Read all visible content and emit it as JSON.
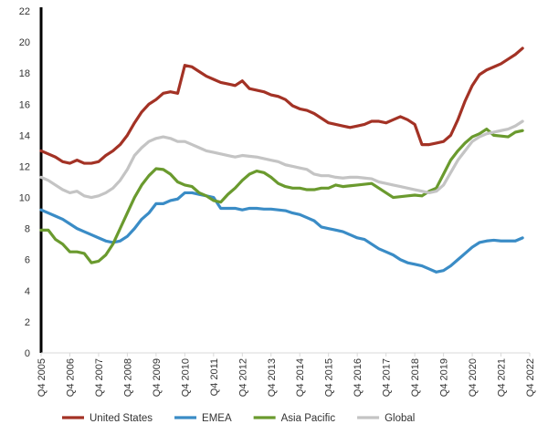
{
  "chart_data": {
    "type": "line",
    "x": [
      "Q4 2005",
      "Q4 2006",
      "Q4 2007",
      "Q4 2008",
      "Q4 2009",
      "Q4 2010",
      "Q4 2011",
      "Q4 2012",
      "Q4 2013",
      "Q4 2014",
      "Q4 2015",
      "Q4 2016",
      "Q4 2017",
      "Q4 2018",
      "Q4 2019",
      "Q4 2020",
      "Q4 2021",
      "Q4 2022"
    ],
    "ylim": [
      0,
      22
    ],
    "y_ticks": [
      0,
      2,
      4,
      6,
      8,
      10,
      12,
      14,
      16,
      18,
      20,
      22
    ],
    "grid": false,
    "legend_position": "bottom",
    "series": [
      {
        "name": "United States",
        "color": "#a33225",
        "points": [
          [
            "Q4 2005",
            13.0
          ],
          [
            "Q1 2006",
            12.8
          ],
          [
            "Q2 2006",
            12.6
          ],
          [
            "Q3 2006",
            12.3
          ],
          [
            "Q4 2006",
            12.2
          ],
          [
            "Q1 2007",
            12.4
          ],
          [
            "Q2 2007",
            12.2
          ],
          [
            "Q3 2007",
            12.2
          ],
          [
            "Q4 2007",
            12.3
          ],
          [
            "Q1 2008",
            12.7
          ],
          [
            "Q2 2008",
            13.0
          ],
          [
            "Q3 2008",
            13.4
          ],
          [
            "Q4 2008",
            14.0
          ],
          [
            "Q1 2009",
            14.8
          ],
          [
            "Q2 2009",
            15.5
          ],
          [
            "Q3 2009",
            16.0
          ],
          [
            "Q4 2009",
            16.3
          ],
          [
            "Q1 2010",
            16.7
          ],
          [
            "Q2 2010",
            16.8
          ],
          [
            "Q3 2010",
            16.7
          ],
          [
            "Q4 2010",
            18.5
          ],
          [
            "Q1 2011",
            18.4
          ],
          [
            "Q2 2011",
            18.1
          ],
          [
            "Q3 2011",
            17.8
          ],
          [
            "Q4 2011",
            17.6
          ],
          [
            "Q1 2012",
            17.4
          ],
          [
            "Q2 2012",
            17.3
          ],
          [
            "Q3 2012",
            17.2
          ],
          [
            "Q4 2012",
            17.5
          ],
          [
            "Q1 2013",
            17.0
          ],
          [
            "Q2 2013",
            16.9
          ],
          [
            "Q3 2013",
            16.8
          ],
          [
            "Q4 2013",
            16.6
          ],
          [
            "Q1 2014",
            16.5
          ],
          [
            "Q2 2014",
            16.3
          ],
          [
            "Q3 2014",
            15.9
          ],
          [
            "Q4 2014",
            15.7
          ],
          [
            "Q1 2015",
            15.6
          ],
          [
            "Q2 2015",
            15.4
          ],
          [
            "Q3 2015",
            15.1
          ],
          [
            "Q4 2015",
            14.8
          ],
          [
            "Q1 2016",
            14.7
          ],
          [
            "Q2 2016",
            14.6
          ],
          [
            "Q3 2016",
            14.5
          ],
          [
            "Q4 2016",
            14.6
          ],
          [
            "Q1 2017",
            14.7
          ],
          [
            "Q2 2017",
            14.9
          ],
          [
            "Q3 2017",
            14.9
          ],
          [
            "Q4 2017",
            14.8
          ],
          [
            "Q1 2018",
            15.0
          ],
          [
            "Q2 2018",
            15.2
          ],
          [
            "Q3 2018",
            15.0
          ],
          [
            "Q4 2018",
            14.7
          ],
          [
            "Q1 2019",
            13.4
          ],
          [
            "Q2 2019",
            13.4
          ],
          [
            "Q3 2019",
            13.5
          ],
          [
            "Q4 2019",
            13.6
          ],
          [
            "Q1 2020",
            14.0
          ],
          [
            "Q2 2020",
            15.0
          ],
          [
            "Q3 2020",
            16.2
          ],
          [
            "Q4 2020",
            17.2
          ],
          [
            "Q1 2021",
            17.9
          ],
          [
            "Q2 2021",
            18.2
          ],
          [
            "Q3 2021",
            18.4
          ],
          [
            "Q4 2021",
            18.6
          ],
          [
            "Q1 2022",
            18.9
          ],
          [
            "Q2 2022",
            19.2
          ],
          [
            "Q3 2022",
            19.6
          ]
        ]
      },
      {
        "name": "EMEA",
        "color": "#3a8cc6",
        "points": [
          [
            "Q4 2005",
            9.2
          ],
          [
            "Q1 2006",
            9.0
          ],
          [
            "Q2 2006",
            8.8
          ],
          [
            "Q3 2006",
            8.6
          ],
          [
            "Q4 2006",
            8.3
          ],
          [
            "Q1 2007",
            8.0
          ],
          [
            "Q2 2007",
            7.8
          ],
          [
            "Q3 2007",
            7.6
          ],
          [
            "Q4 2007",
            7.4
          ],
          [
            "Q1 2008",
            7.2
          ],
          [
            "Q2 2008",
            7.1
          ],
          [
            "Q3 2008",
            7.2
          ],
          [
            "Q4 2008",
            7.5
          ],
          [
            "Q1 2009",
            8.0
          ],
          [
            "Q2 2009",
            8.6
          ],
          [
            "Q3 2009",
            9.0
          ],
          [
            "Q4 2009",
            9.6
          ],
          [
            "Q1 2010",
            9.6
          ],
          [
            "Q2 2010",
            9.8
          ],
          [
            "Q3 2010",
            9.9
          ],
          [
            "Q4 2010",
            10.3
          ],
          [
            "Q1 2011",
            10.3
          ],
          [
            "Q2 2011",
            10.2
          ],
          [
            "Q3 2011",
            10.1
          ],
          [
            "Q4 2011",
            10.0
          ],
          [
            "Q1 2012",
            9.3
          ],
          [
            "Q2 2012",
            9.3
          ],
          [
            "Q3 2012",
            9.3
          ],
          [
            "Q4 2012",
            9.2
          ],
          [
            "Q1 2013",
            9.3
          ],
          [
            "Q2 2013",
            9.3
          ],
          [
            "Q3 2013",
            9.25
          ],
          [
            "Q4 2013",
            9.25
          ],
          [
            "Q1 2014",
            9.2
          ],
          [
            "Q2 2014",
            9.15
          ],
          [
            "Q3 2014",
            9.0
          ],
          [
            "Q4 2014",
            8.9
          ],
          [
            "Q1 2015",
            8.7
          ],
          [
            "Q2 2015",
            8.5
          ],
          [
            "Q3 2015",
            8.1
          ],
          [
            "Q4 2015",
            8.0
          ],
          [
            "Q1 2016",
            7.9
          ],
          [
            "Q2 2016",
            7.8
          ],
          [
            "Q3 2016",
            7.6
          ],
          [
            "Q4 2016",
            7.4
          ],
          [
            "Q1 2017",
            7.3
          ],
          [
            "Q2 2017",
            7.0
          ],
          [
            "Q3 2017",
            6.7
          ],
          [
            "Q4 2017",
            6.5
          ],
          [
            "Q1 2018",
            6.3
          ],
          [
            "Q2 2018",
            6.0
          ],
          [
            "Q3 2018",
            5.8
          ],
          [
            "Q4 2018",
            5.7
          ],
          [
            "Q1 2019",
            5.6
          ],
          [
            "Q2 2019",
            5.4
          ],
          [
            "Q3 2019",
            5.2
          ],
          [
            "Q4 2019",
            5.3
          ],
          [
            "Q1 2020",
            5.6
          ],
          [
            "Q2 2020",
            6.0
          ],
          [
            "Q3 2020",
            6.4
          ],
          [
            "Q4 2020",
            6.8
          ],
          [
            "Q1 2021",
            7.1
          ],
          [
            "Q2 2021",
            7.2
          ],
          [
            "Q3 2021",
            7.25
          ],
          [
            "Q4 2021",
            7.2
          ],
          [
            "Q1 2022",
            7.2
          ],
          [
            "Q2 2022",
            7.2
          ],
          [
            "Q3 2022",
            7.4
          ]
        ]
      },
      {
        "name": "Asia Pacific",
        "color": "#6a9a2e",
        "points": [
          [
            "Q4 2005",
            7.9
          ],
          [
            "Q1 2006",
            7.9
          ],
          [
            "Q2 2006",
            7.3
          ],
          [
            "Q3 2006",
            7.0
          ],
          [
            "Q4 2006",
            6.5
          ],
          [
            "Q1 2007",
            6.5
          ],
          [
            "Q2 2007",
            6.4
          ],
          [
            "Q3 2007",
            5.8
          ],
          [
            "Q4 2007",
            5.9
          ],
          [
            "Q1 2008",
            6.3
          ],
          [
            "Q2 2008",
            7.0
          ],
          [
            "Q3 2008",
            8.0
          ],
          [
            "Q4 2008",
            9.0
          ],
          [
            "Q1 2009",
            10.0
          ],
          [
            "Q2 2009",
            10.8
          ],
          [
            "Q3 2009",
            11.4
          ],
          [
            "Q4 2009",
            11.85
          ],
          [
            "Q1 2010",
            11.8
          ],
          [
            "Q2 2010",
            11.5
          ],
          [
            "Q3 2010",
            11.0
          ],
          [
            "Q4 2010",
            10.8
          ],
          [
            "Q1 2011",
            10.7
          ],
          [
            "Q2 2011",
            10.3
          ],
          [
            "Q3 2011",
            10.1
          ],
          [
            "Q4 2011",
            9.8
          ],
          [
            "Q1 2012",
            9.7
          ],
          [
            "Q2 2012",
            10.2
          ],
          [
            "Q3 2012",
            10.6
          ],
          [
            "Q4 2012",
            11.1
          ],
          [
            "Q1 2013",
            11.5
          ],
          [
            "Q2 2013",
            11.7
          ],
          [
            "Q3 2013",
            11.6
          ],
          [
            "Q4 2013",
            11.3
          ],
          [
            "Q1 2014",
            10.9
          ],
          [
            "Q2 2014",
            10.7
          ],
          [
            "Q3 2014",
            10.6
          ],
          [
            "Q4 2014",
            10.6
          ],
          [
            "Q1 2015",
            10.5
          ],
          [
            "Q2 2015",
            10.5
          ],
          [
            "Q3 2015",
            10.6
          ],
          [
            "Q4 2015",
            10.6
          ],
          [
            "Q1 2016",
            10.8
          ],
          [
            "Q2 2016",
            10.7
          ],
          [
            "Q3 2016",
            10.75
          ],
          [
            "Q4 2016",
            10.8
          ],
          [
            "Q1 2017",
            10.85
          ],
          [
            "Q2 2017",
            10.9
          ],
          [
            "Q3 2017",
            10.6
          ],
          [
            "Q4 2017",
            10.3
          ],
          [
            "Q1 2018",
            10.0
          ],
          [
            "Q2 2018",
            10.05
          ],
          [
            "Q3 2018",
            10.1
          ],
          [
            "Q4 2018",
            10.15
          ],
          [
            "Q1 2019",
            10.1
          ],
          [
            "Q2 2019",
            10.4
          ],
          [
            "Q3 2019",
            10.6
          ],
          [
            "Q4 2019",
            11.5
          ],
          [
            "Q1 2020",
            12.4
          ],
          [
            "Q2 2020",
            13.0
          ],
          [
            "Q3 2020",
            13.5
          ],
          [
            "Q4 2020",
            13.9
          ],
          [
            "Q1 2021",
            14.1
          ],
          [
            "Q2 2021",
            14.4
          ],
          [
            "Q3 2021",
            14.0
          ],
          [
            "Q4 2021",
            13.95
          ],
          [
            "Q1 2022",
            13.9
          ],
          [
            "Q2 2022",
            14.2
          ],
          [
            "Q3 2022",
            14.3
          ]
        ]
      },
      {
        "name": "Global",
        "color": "#c4c4c4",
        "points": [
          [
            "Q4 2005",
            11.3
          ],
          [
            "Q1 2006",
            11.1
          ],
          [
            "Q2 2006",
            10.8
          ],
          [
            "Q3 2006",
            10.5
          ],
          [
            "Q4 2006",
            10.3
          ],
          [
            "Q1 2007",
            10.4
          ],
          [
            "Q2 2007",
            10.1
          ],
          [
            "Q3 2007",
            10.0
          ],
          [
            "Q4 2007",
            10.1
          ],
          [
            "Q1 2008",
            10.3
          ],
          [
            "Q2 2008",
            10.6
          ],
          [
            "Q3 2008",
            11.1
          ],
          [
            "Q4 2008",
            11.8
          ],
          [
            "Q1 2009",
            12.7
          ],
          [
            "Q2 2009",
            13.2
          ],
          [
            "Q3 2009",
            13.6
          ],
          [
            "Q4 2009",
            13.8
          ],
          [
            "Q1 2010",
            13.9
          ],
          [
            "Q2 2010",
            13.8
          ],
          [
            "Q3 2010",
            13.6
          ],
          [
            "Q4 2010",
            13.6
          ],
          [
            "Q1 2011",
            13.4
          ],
          [
            "Q2 2011",
            13.2
          ],
          [
            "Q3 2011",
            13.0
          ],
          [
            "Q4 2011",
            12.9
          ],
          [
            "Q1 2012",
            12.8
          ],
          [
            "Q2 2012",
            12.7
          ],
          [
            "Q3 2012",
            12.6
          ],
          [
            "Q4 2012",
            12.7
          ],
          [
            "Q1 2013",
            12.65
          ],
          [
            "Q2 2013",
            12.6
          ],
          [
            "Q3 2013",
            12.5
          ],
          [
            "Q4 2013",
            12.4
          ],
          [
            "Q1 2014",
            12.3
          ],
          [
            "Q2 2014",
            12.1
          ],
          [
            "Q3 2014",
            12.0
          ],
          [
            "Q4 2014",
            11.9
          ],
          [
            "Q1 2015",
            11.8
          ],
          [
            "Q2 2015",
            11.5
          ],
          [
            "Q3 2015",
            11.4
          ],
          [
            "Q4 2015",
            11.4
          ],
          [
            "Q1 2016",
            11.3
          ],
          [
            "Q2 2016",
            11.25
          ],
          [
            "Q3 2016",
            11.3
          ],
          [
            "Q4 2016",
            11.3
          ],
          [
            "Q1 2017",
            11.25
          ],
          [
            "Q2 2017",
            11.2
          ],
          [
            "Q3 2017",
            11.0
          ],
          [
            "Q4 2017",
            10.9
          ],
          [
            "Q1 2018",
            10.8
          ],
          [
            "Q2 2018",
            10.7
          ],
          [
            "Q3 2018",
            10.6
          ],
          [
            "Q4 2018",
            10.5
          ],
          [
            "Q1 2019",
            10.4
          ],
          [
            "Q2 2019",
            10.3
          ],
          [
            "Q3 2019",
            10.4
          ],
          [
            "Q4 2019",
            10.8
          ],
          [
            "Q1 2020",
            11.6
          ],
          [
            "Q2 2020",
            12.4
          ],
          [
            "Q3 2020",
            13.0
          ],
          [
            "Q4 2020",
            13.6
          ],
          [
            "Q1 2021",
            13.9
          ],
          [
            "Q2 2021",
            14.1
          ],
          [
            "Q3 2021",
            14.2
          ],
          [
            "Q4 2021",
            14.3
          ],
          [
            "Q1 2022",
            14.4
          ],
          [
            "Q2 2022",
            14.6
          ],
          [
            "Q3 2022",
            14.9
          ]
        ]
      }
    ]
  }
}
